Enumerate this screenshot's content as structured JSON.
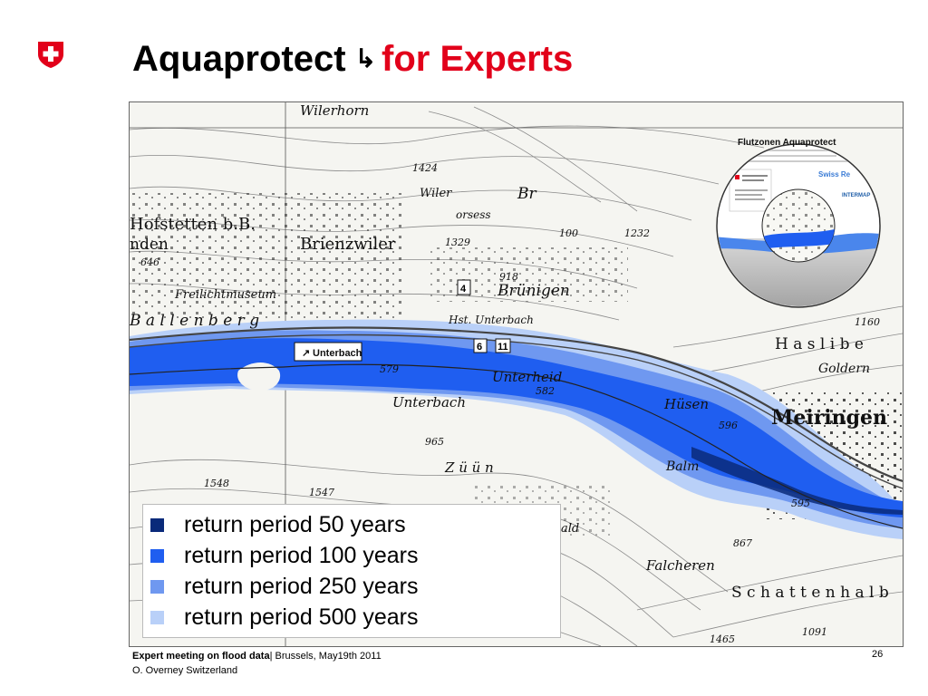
{
  "title": {
    "main": "Aquaprotect",
    "arrow": "↳",
    "accent": "for Experts"
  },
  "colors": {
    "accent": "#e2001a",
    "rp50": "#0a2a7a",
    "rp100": "#1f5ef0",
    "rp250": "#6f98f0",
    "rp500": "#b9d0f8"
  },
  "map": {
    "places": {
      "wilerhorn": "Wilerhorn",
      "hofstetten": "Hofstetten b.B.",
      "brienzwiler": "Brienzwiler",
      "ballenberg": "B a l l e n b e r g",
      "freilicht": "Freilichtmuseum",
      "brunigen": "Brünigen",
      "hst_unterbach": "Hst. Unterbach",
      "unterbach_sign": "Unterbach",
      "unterbach": "Unterbach",
      "unterheid": "Unterheid",
      "husen": "Hüsen",
      "meiringen": "Meiringen",
      "hasliberg": "H a s l i b e",
      "goldern": "Goldern",
      "balm": "Balm",
      "zuun": "Z ü ü n",
      "falcheren": "Falcheren",
      "schattenhalb": "S c h a t t e n h a l b",
      "wiler": "Wiler",
      "gorsess": "orsess",
      "nden": "nden",
      "br": "Br",
      "ald": "ald"
    },
    "elevations": [
      "1424",
      "1329",
      "1232",
      "918",
      "646",
      "579",
      "582",
      "596",
      "595",
      "965",
      "1548",
      "1547",
      "867",
      "1091",
      "1465",
      "1160",
      "100"
    ],
    "road_numbers": [
      "4",
      "6",
      "11"
    ],
    "inset": {
      "title": "Flutzonen Aquaprotect",
      "swiss_re": "Swiss Re",
      "intermap": "INTERMAP"
    }
  },
  "legend": [
    {
      "label": "return period 50 years",
      "color": "#0a2a7a"
    },
    {
      "label": "return period 100 years",
      "color": "#1f5ef0"
    },
    {
      "label": "return period 250 years",
      "color": "#6f98f0"
    },
    {
      "label": "return period 500 years",
      "color": "#b9d0f8"
    }
  ],
  "footer": {
    "event": "Expert meeting on flood data",
    "location": "| Brussels, May19th 2011",
    "author": "O. Overney Switzerland"
  },
  "page_number": "26"
}
